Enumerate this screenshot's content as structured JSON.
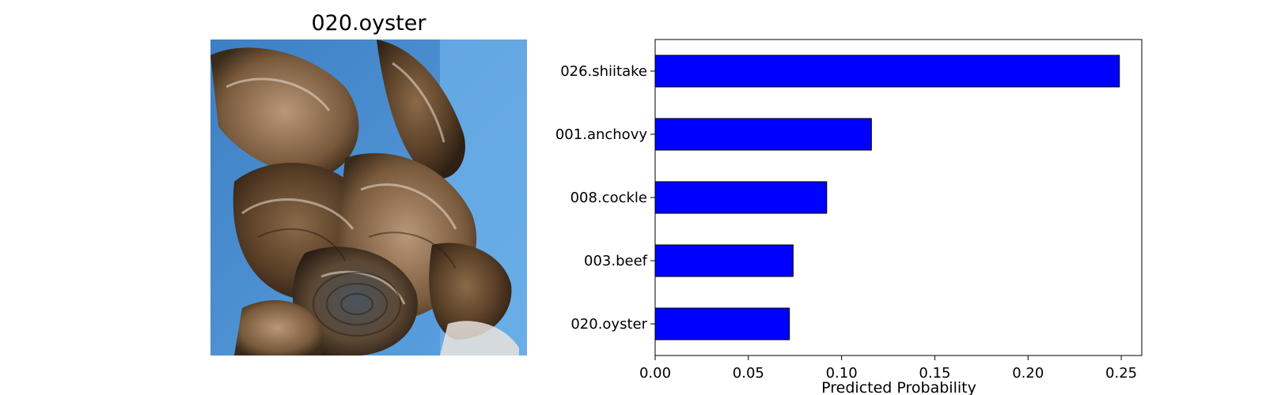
{
  "image_panel": {
    "title": "020.oyster",
    "subject": "oysters-photo"
  },
  "chart_data": {
    "type": "bar",
    "orientation": "horizontal",
    "categories": [
      "026.shiitake",
      "001.anchovy",
      "008.cockle",
      "003.beef",
      "020.oyster"
    ],
    "values": [
      0.249,
      0.116,
      0.092,
      0.074,
      0.072
    ],
    "title": "",
    "xlabel": "Predicted Probability",
    "ylabel": "",
    "xlim": [
      0,
      0.261
    ],
    "xticks": [
      "0.00",
      "0.05",
      "0.10",
      "0.15",
      "0.20",
      "0.25"
    ],
    "grid": false,
    "legend": "none",
    "bar_color": "#0000ff",
    "edge_color": "#000000"
  }
}
